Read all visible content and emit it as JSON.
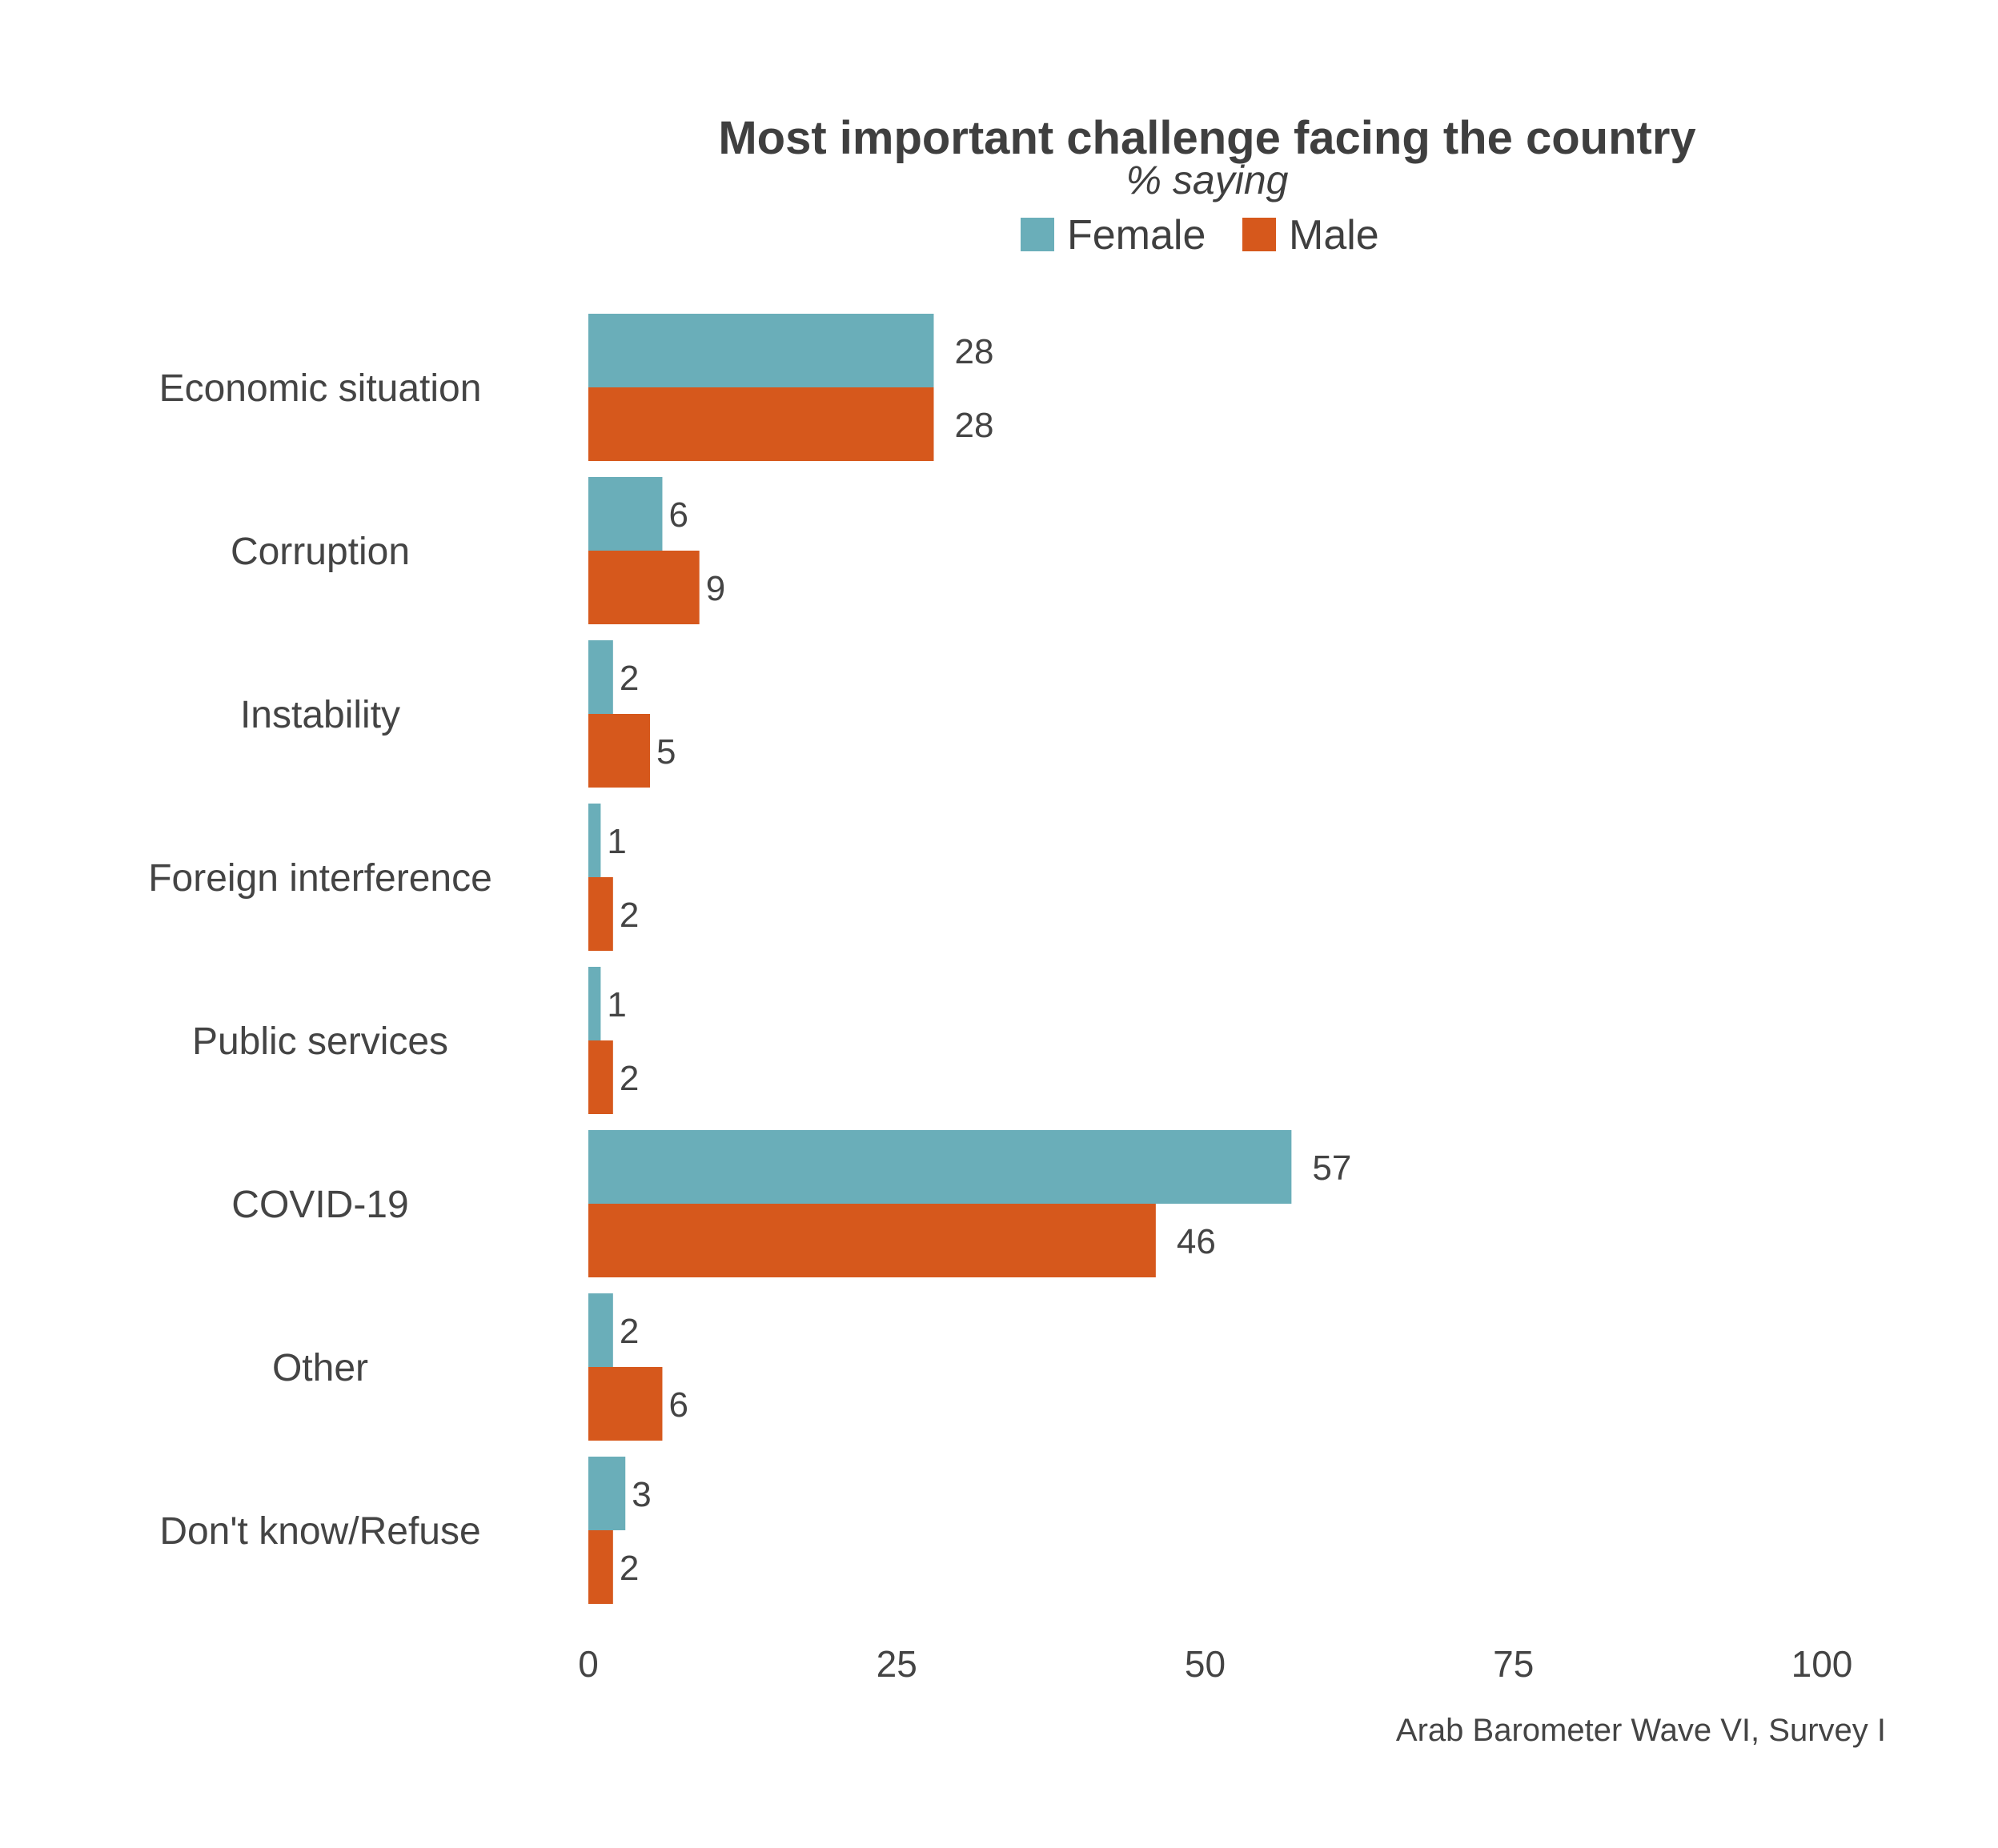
{
  "chart_data": {
    "type": "bar",
    "orientation": "horizontal",
    "title": "Most important challenge facing the country",
    "subtitle": "% saying",
    "categories": [
      "Economic situation",
      "Corruption",
      "Instability",
      "Foreign interference",
      "Public services",
      "COVID-19",
      "Other",
      "Don't know/Refuse"
    ],
    "series": [
      {
        "name": "Female",
        "color": "#6aaeb9",
        "values": [
          28,
          6,
          2,
          1,
          1,
          57,
          2,
          3
        ]
      },
      {
        "name": "Male",
        "color": "#d6581c",
        "values": [
          28,
          9,
          5,
          2,
          2,
          46,
          6,
          2
        ]
      }
    ],
    "xlim": [
      0,
      100
    ],
    "xticks": [
      0,
      25,
      50,
      75,
      100
    ],
    "legend_position": "top",
    "grid": false,
    "caption": "Arab Barometer Wave VI, Survey I"
  }
}
